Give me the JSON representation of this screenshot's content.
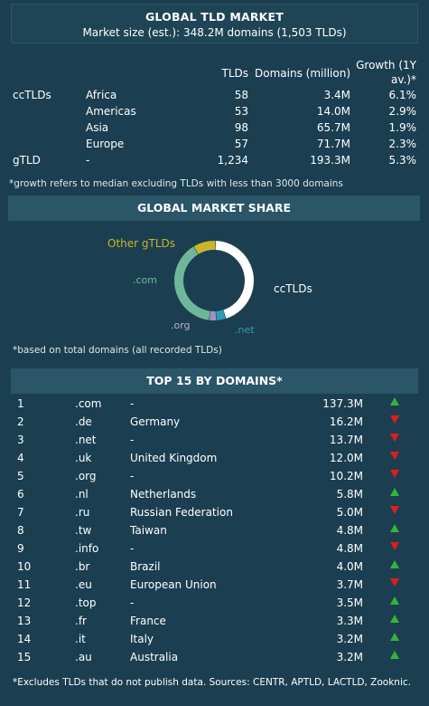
{
  "header": {
    "title": "GLOBAL TLD MARKET",
    "subtitle": "Market size (est.):  348.2M domains (1,503 TLDs)"
  },
  "tld_table": {
    "columns": {
      "tlds": "TLDs",
      "domains": "Domains (million)",
      "growth": "Growth (1Y av.)*"
    },
    "rows": [
      {
        "group": "ccTLDs",
        "region": "Africa",
        "tlds": "58",
        "domains": "3.4M",
        "growth": "6.1%"
      },
      {
        "group": "",
        "region": "Americas",
        "tlds": "53",
        "domains": "14.0M",
        "growth": "2.9%"
      },
      {
        "group": "",
        "region": "Asia",
        "tlds": "98",
        "domains": "65.7M",
        "growth": "1.9%"
      },
      {
        "group": "",
        "region": "Europe",
        "tlds": "57",
        "domains": "71.7M",
        "growth": "2.3%"
      },
      {
        "group": "gTLD",
        "region": "-",
        "tlds": "1,234",
        "domains": "193.3M",
        "growth": "5.3%"
      }
    ],
    "note": "*growth refers to median excluding TLDs with less than 3000 domains"
  },
  "market_share": {
    "title": "GLOBAL MARKET SHARE",
    "labels": {
      "other": "Other gTLDs",
      "com": ".com",
      "org": ".org",
      "net": ".net",
      "cctlds": "ccTLDs"
    },
    "note": "*based on total domains (all recorded TLDs)"
  },
  "chart_data": {
    "type": "pie",
    "categories": [
      "ccTLDs",
      ".net",
      ".org",
      ".com",
      "Other gTLDs"
    ],
    "values": [
      44.5,
      3.9,
      2.9,
      39.4,
      9.3
    ],
    "colors": [
      "#ffffff",
      "#2f9cb5",
      "#9a92c4",
      "#6fb79a",
      "#c9b52c"
    ],
    "title": "GLOBAL MARKET SHARE"
  },
  "top15": {
    "title": "TOP 15 BY DOMAINS*",
    "rows": [
      {
        "rank": "1",
        "tld": ".com",
        "country": "-",
        "domains": "137.3M",
        "trend": "up"
      },
      {
        "rank": "2",
        "tld": ".de",
        "country": "Germany",
        "domains": "16.2M",
        "trend": "down"
      },
      {
        "rank": "3",
        "tld": ".net",
        "country": "-",
        "domains": "13.7M",
        "trend": "down"
      },
      {
        "rank": "4",
        "tld": ".uk",
        "country": "United Kingdom",
        "domains": "12.0M",
        "trend": "down"
      },
      {
        "rank": "5",
        "tld": ".org",
        "country": "-",
        "domains": "10.2M",
        "trend": "down"
      },
      {
        "rank": "6",
        "tld": ".nl",
        "country": "Netherlands",
        "domains": "5.8M",
        "trend": "up"
      },
      {
        "rank": "7",
        "tld": ".ru",
        "country": "Russian Federation",
        "domains": "5.0M",
        "trend": "down"
      },
      {
        "rank": "8",
        "tld": ".tw",
        "country": "Taiwan",
        "domains": "4.8M",
        "trend": "up"
      },
      {
        "rank": "9",
        "tld": ".info",
        "country": "-",
        "domains": "4.8M",
        "trend": "down"
      },
      {
        "rank": "10",
        "tld": ".br",
        "country": "Brazil",
        "domains": "4.0M",
        "trend": "up"
      },
      {
        "rank": "11",
        "tld": ".eu",
        "country": "European Union",
        "domains": "3.7M",
        "trend": "down"
      },
      {
        "rank": "12",
        "tld": ".top",
        "country": "-",
        "domains": "3.5M",
        "trend": "up"
      },
      {
        "rank": "13",
        "tld": ".fr",
        "country": "France",
        "domains": "3.3M",
        "trend": "up"
      },
      {
        "rank": "14",
        "tld": ".it",
        "country": "Italy",
        "domains": "3.2M",
        "trend": "up"
      },
      {
        "rank": "15",
        "tld": ".au",
        "country": "Australia",
        "domains": "3.2M",
        "trend": "up"
      }
    ],
    "footer": "*Excludes TLDs that do not publish data. Sources: CENTR, APTLD, LACTLD, Zooknic."
  },
  "colors": {
    "background": "#1b3f50",
    "band": "#2a5668",
    "up": "#38b23b",
    "down": "#e51b1b",
    "other_label": "#c9b52c",
    "com_label": "#6fb79a",
    "net_label": "#2f9cb5"
  }
}
